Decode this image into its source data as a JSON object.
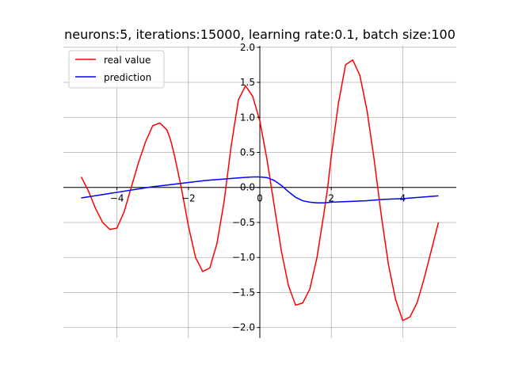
{
  "chart_data": {
    "type": "line",
    "title": "neurons:5, iterations:15000, learning rate:0.1, batch size:100",
    "xlabel": "",
    "ylabel": "",
    "xlim": [
      -5.5,
      5.5
    ],
    "ylim": [
      -2.15,
      2.02
    ],
    "x_ticks": [
      -4,
      -2,
      0,
      2,
      4
    ],
    "y_ticks": [
      -2.0,
      -1.5,
      -1.0,
      -0.5,
      0.0,
      0.5,
      1.0,
      1.5,
      2.0
    ],
    "grid": true,
    "legend_position": "top-left",
    "series": [
      {
        "name": "real value",
        "color": "#ff0000",
        "x": [
          -5.0,
          -4.8,
          -4.6,
          -4.4,
          -4.2,
          -4.0,
          -3.8,
          -3.6,
          -3.4,
          -3.2,
          -3.0,
          -2.8,
          -2.6,
          -2.5,
          -2.4,
          -2.2,
          -2.0,
          -1.8,
          -1.6,
          -1.4,
          -1.2,
          -1.0,
          -0.8,
          -0.6,
          -0.4,
          -0.2,
          0.0,
          0.2,
          0.4,
          0.6,
          0.8,
          1.0,
          1.2,
          1.4,
          1.6,
          1.8,
          1.9,
          2.0,
          2.2,
          2.4,
          2.6,
          2.8,
          3.0,
          3.2,
          3.4,
          3.6,
          3.8,
          4.0,
          4.2,
          4.4,
          4.6,
          4.8,
          5.0
        ],
        "y": [
          0.15,
          -0.05,
          -0.3,
          -0.5,
          -0.6,
          -0.58,
          -0.35,
          0.0,
          0.35,
          0.65,
          0.88,
          0.92,
          0.82,
          0.68,
          0.48,
          0.0,
          -0.55,
          -1.0,
          -1.2,
          -1.15,
          -0.8,
          -0.2,
          0.6,
          1.25,
          1.45,
          1.3,
          0.95,
          0.4,
          -0.25,
          -0.9,
          -1.4,
          -1.68,
          -1.65,
          -1.45,
          -1.0,
          -0.35,
          0.0,
          0.45,
          1.2,
          1.75,
          1.82,
          1.6,
          1.1,
          0.4,
          -0.4,
          -1.1,
          -1.6,
          -1.9,
          -1.85,
          -1.65,
          -1.3,
          -0.9,
          -0.5
        ]
      },
      {
        "name": "prediction",
        "color": "#0000ff",
        "x": [
          -5.0,
          -4.5,
          -4.0,
          -3.5,
          -3.0,
          -2.5,
          -2.0,
          -1.5,
          -1.0,
          -0.5,
          -0.2,
          0.0,
          0.2,
          0.4,
          0.6,
          0.8,
          1.0,
          1.2,
          1.4,
          1.6,
          1.8,
          2.0,
          2.5,
          3.0,
          3.5,
          4.0,
          4.5,
          5.0
        ],
        "y": [
          -0.15,
          -0.11,
          -0.07,
          -0.03,
          0.01,
          0.04,
          0.07,
          0.1,
          0.12,
          0.14,
          0.15,
          0.15,
          0.14,
          0.1,
          0.03,
          -0.06,
          -0.14,
          -0.19,
          -0.21,
          -0.22,
          -0.22,
          -0.21,
          -0.2,
          -0.19,
          -0.17,
          -0.16,
          -0.14,
          -0.12
        ]
      }
    ]
  }
}
